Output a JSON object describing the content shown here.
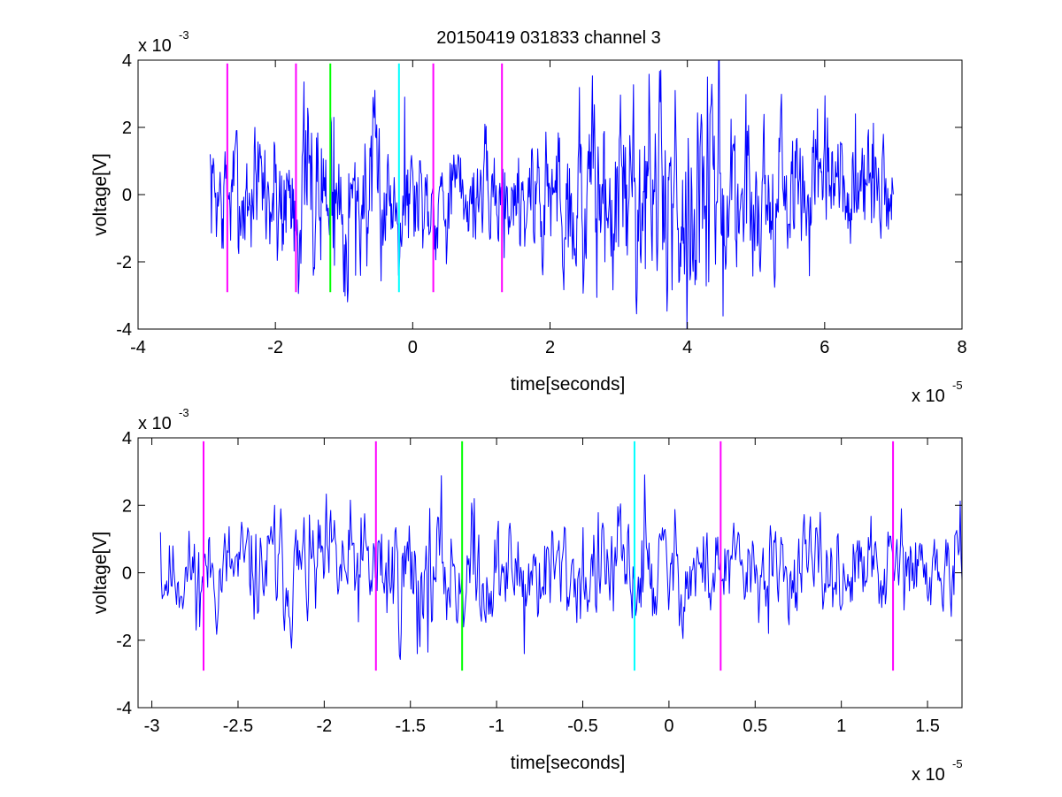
{
  "figure": {
    "title": "20150419 031833 channel 3",
    "background": "#ffffff",
    "trace_color": "#0000ff",
    "axes_color": "#000000"
  },
  "chart_data": [
    {
      "type": "line",
      "title": "20150419 031833 channel 3",
      "xlabel": "time[seconds]",
      "ylabel": "voltage[V]",
      "x_exponent_label": "x 10",
      "x_exponent": "-5",
      "y_exponent_label": "x 10",
      "y_exponent": "-3",
      "xlim": [
        -4,
        8
      ],
      "ylim": [
        -4,
        4
      ],
      "xticks": [
        -4,
        -2,
        0,
        2,
        4,
        6,
        8
      ],
      "xtick_labels": [
        "-4",
        "-2",
        "0",
        "2",
        "4",
        "6",
        "8"
      ],
      "yticks": [
        -4,
        -2,
        0,
        2,
        4
      ],
      "ytick_labels": [
        "-4",
        "-2",
        "0",
        "2",
        "4"
      ],
      "grid": false,
      "series": [
        {
          "color": "#0000ff",
          "x_range": [
            -2.95,
            7.0
          ],
          "n_points": 1100,
          "seed": 7,
          "noise_sd": 0.75,
          "envelope": [
            {
              "x": -2.95,
              "amp": 1.0
            },
            {
              "x": -1.4,
              "amp": 1.6
            },
            {
              "x": 0.0,
              "amp": 1.0
            },
            {
              "x": 1.0,
              "amp": 0.8
            },
            {
              "x": 2.7,
              "amp": 1.7
            },
            {
              "x": 4.3,
              "amp": 2.0
            },
            {
              "x": 5.5,
              "amp": 1.2
            },
            {
              "x": 7.0,
              "amp": 1.1
            }
          ],
          "anchors": [
            {
              "x": -2.95,
              "y": 1.2
            },
            {
              "x": -2.76,
              "y": -1.6
            },
            {
              "x": -2.3,
              "y": 2.0
            },
            {
              "x": -1.45,
              "y": -2.4
            },
            {
              "x": -1.15,
              "y": 2.3
            },
            {
              "x": -0.83,
              "y": -2.4
            },
            {
              "x": -0.12,
              "y": 2.9
            },
            {
              "x": 2.8,
              "y": -2.0
            },
            {
              "x": 3.82,
              "y": 3.1
            },
            {
              "x": 4.29,
              "y": 3.5
            },
            {
              "x": 4.31,
              "y": -2.6
            },
            {
              "x": 6.45,
              "y": 2.4
            },
            {
              "x": 6.98,
              "y": 0.5
            }
          ]
        }
      ],
      "event_markers": [
        {
          "x": -2.7,
          "color": "#ff00ff",
          "y_range": [
            -2.9,
            3.9
          ]
        },
        {
          "x": -1.7,
          "color": "#ff00ff",
          "y_range": [
            -2.9,
            3.9
          ]
        },
        {
          "x": -1.2,
          "color": "#00ff00",
          "y_range": [
            -2.9,
            3.9
          ]
        },
        {
          "x": -0.2,
          "color": "#00ffff",
          "y_range": [
            -2.9,
            3.9
          ]
        },
        {
          "x": 0.3,
          "color": "#ff00ff",
          "y_range": [
            -2.9,
            3.9
          ]
        },
        {
          "x": 1.3,
          "color": "#ff00ff",
          "y_range": [
            -2.9,
            3.9
          ]
        }
      ]
    },
    {
      "type": "line",
      "title": "",
      "xlabel": "time[seconds]",
      "ylabel": "voltage[V]",
      "x_exponent_label": "x 10",
      "x_exponent": "-5",
      "y_exponent_label": "x 10",
      "y_exponent": "-3",
      "xlim": [
        -3.08,
        1.7
      ],
      "ylim": [
        -4,
        4
      ],
      "xticks": [
        -3,
        -2.5,
        -2,
        -1.5,
        -1,
        -0.5,
        0,
        0.5,
        1,
        1.5
      ],
      "xtick_labels": [
        "-3",
        "-2.5",
        "-2",
        "-1.5",
        "-1",
        "-0.5",
        "0",
        "0.5",
        "1",
        "1.5"
      ],
      "yticks": [
        -4,
        -2,
        0,
        2,
        4
      ],
      "ytick_labels": [
        "-4",
        "-2",
        "0",
        "2",
        "4"
      ],
      "grid": false,
      "series": [
        {
          "color": "#0000ff",
          "x_range": [
            -2.95,
            1.7
          ],
          "n_points": 900,
          "seed": 11,
          "noise_sd": 0.6,
          "envelope": [
            {
              "x": -2.95,
              "amp": 0.9
            },
            {
              "x": -1.4,
              "amp": 1.5
            },
            {
              "x": -1.0,
              "amp": 1.1
            },
            {
              "x": -0.2,
              "amp": 1.3
            },
            {
              "x": 0.5,
              "amp": 0.9
            },
            {
              "x": 1.7,
              "amp": 1.0
            }
          ],
          "anchors": [
            {
              "x": -2.95,
              "y": 1.2
            },
            {
              "x": -2.72,
              "y": -1.6
            },
            {
              "x": -2.29,
              "y": 2.0
            },
            {
              "x": -1.46,
              "y": -2.4
            },
            {
              "x": -1.13,
              "y": 2.2
            },
            {
              "x": -0.84,
              "y": -2.4
            },
            {
              "x": -0.14,
              "y": 2.9
            },
            {
              "x": 0.58,
              "y": -1.8
            },
            {
              "x": 1.35,
              "y": 1.9
            },
            {
              "x": 1.7,
              "y": -0.2
            }
          ]
        }
      ],
      "event_markers": [
        {
          "x": -2.7,
          "color": "#ff00ff",
          "y_range": [
            -2.9,
            3.9
          ]
        },
        {
          "x": -1.7,
          "color": "#ff00ff",
          "y_range": [
            -2.9,
            3.9
          ]
        },
        {
          "x": -1.2,
          "color": "#00ff00",
          "y_range": [
            -2.9,
            3.9
          ]
        },
        {
          "x": -0.2,
          "color": "#00ffff",
          "y_range": [
            -2.9,
            3.9
          ]
        },
        {
          "x": 0.3,
          "color": "#ff00ff",
          "y_range": [
            -2.9,
            3.9
          ]
        },
        {
          "x": 1.3,
          "color": "#ff00ff",
          "y_range": [
            -2.9,
            3.9
          ]
        }
      ]
    }
  ]
}
